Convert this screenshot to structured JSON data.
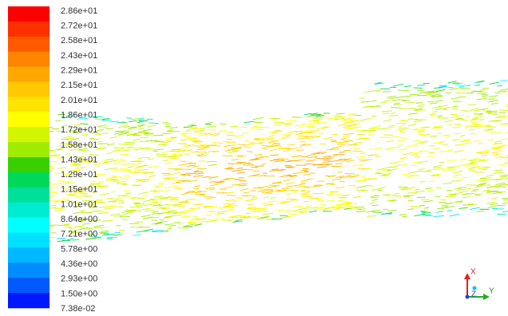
{
  "legend": {
    "labels": [
      "2.86e+01",
      "2.72e+01",
      "2.58e+01",
      "2.43e+01",
      "2.29e+01",
      "2.15e+01",
      "2.01e+01",
      "1.86e+01",
      "1.72e+01",
      "1.58e+01",
      "1.43e+01",
      "1.29e+01",
      "1.15e+01",
      "1.01e+01",
      "8.64e+00",
      "7.21e+00",
      "5.78e+00",
      "4.36e+00",
      "2.93e+00",
      "1.50e+00",
      "7.38e-02"
    ],
    "colors": [
      "#ff0000",
      "#ff3000",
      "#ff5a00",
      "#ff8400",
      "#ffa800",
      "#ffc800",
      "#ffe400",
      "#ffff00",
      "#d2f500",
      "#a0ec00",
      "#3ad000",
      "#00d85a",
      "#00e09a",
      "#00ecd0",
      "#00ffff",
      "#00e0ff",
      "#00b8ff",
      "#008cff",
      "#0058ff",
      "#0018ff"
    ]
  },
  "triad": {
    "x": "X",
    "y": "Y",
    "z": "Z"
  }
}
